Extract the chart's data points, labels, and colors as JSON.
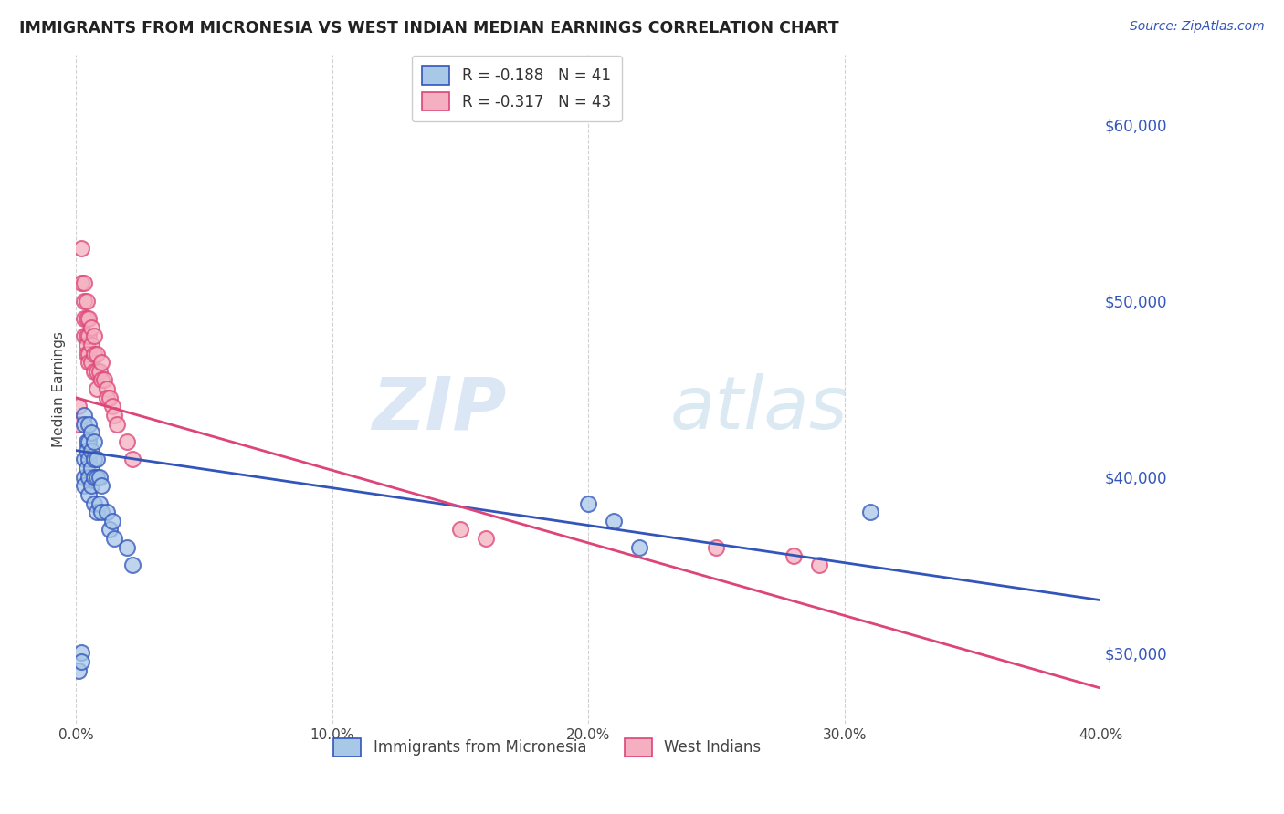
{
  "title": "IMMIGRANTS FROM MICRONESIA VS WEST INDIAN MEDIAN EARNINGS CORRELATION CHART",
  "source": "Source: ZipAtlas.com",
  "ylabel": "Median Earnings",
  "y_ticks": [
    30000,
    40000,
    50000,
    60000
  ],
  "y_tick_labels": [
    "$30,000",
    "$40,000",
    "$50,000",
    "$60,000"
  ],
  "xlim": [
    0.0,
    0.4
  ],
  "ylim": [
    26000,
    64000
  ],
  "legend_label1": "R = -0.188   N = 41",
  "legend_label2": "R = -0.317   N = 43",
  "legend_x_label": "Immigrants from Micronesia",
  "legend_x_label2": "West Indians",
  "color_blue": "#a8c8e8",
  "color_pink": "#f4b0c0",
  "line_color_blue": "#3355bb",
  "line_color_pink": "#dd4477",
  "background_color": "#ffffff",
  "watermark": "ZIPatlas",
  "micronesia_x": [
    0.001,
    0.002,
    0.002,
    0.003,
    0.003,
    0.003,
    0.003,
    0.003,
    0.004,
    0.004,
    0.004,
    0.005,
    0.005,
    0.005,
    0.005,
    0.005,
    0.006,
    0.006,
    0.006,
    0.006,
    0.007,
    0.007,
    0.007,
    0.007,
    0.008,
    0.008,
    0.008,
    0.009,
    0.009,
    0.01,
    0.01,
    0.012,
    0.013,
    0.014,
    0.015,
    0.02,
    0.022,
    0.2,
    0.21,
    0.22,
    0.31
  ],
  "micronesia_y": [
    29000,
    30000,
    29500,
    43500,
    43000,
    41000,
    40000,
    39500,
    42000,
    41500,
    40500,
    43000,
    42000,
    41000,
    40000,
    39000,
    42500,
    41500,
    40500,
    39500,
    42000,
    41000,
    40000,
    38500,
    41000,
    40000,
    38000,
    40000,
    38500,
    39500,
    38000,
    38000,
    37000,
    37500,
    36500,
    36000,
    35000,
    38500,
    37500,
    36000,
    38000
  ],
  "westindian_x": [
    0.001,
    0.001,
    0.002,
    0.002,
    0.003,
    0.003,
    0.003,
    0.003,
    0.004,
    0.004,
    0.004,
    0.004,
    0.004,
    0.005,
    0.005,
    0.005,
    0.005,
    0.006,
    0.006,
    0.006,
    0.007,
    0.007,
    0.007,
    0.008,
    0.008,
    0.008,
    0.009,
    0.01,
    0.01,
    0.011,
    0.012,
    0.012,
    0.013,
    0.014,
    0.015,
    0.016,
    0.02,
    0.022,
    0.15,
    0.16,
    0.25,
    0.28,
    0.29
  ],
  "westindian_y": [
    44000,
    43000,
    53000,
    51000,
    51000,
    50000,
    49000,
    48000,
    50000,
    49000,
    48000,
    47500,
    47000,
    49000,
    48000,
    47000,
    46500,
    48500,
    47500,
    46500,
    48000,
    47000,
    46000,
    47000,
    46000,
    45000,
    46000,
    46500,
    45500,
    45500,
    45000,
    44500,
    44500,
    44000,
    43500,
    43000,
    42000,
    41000,
    37000,
    36500,
    36000,
    35500,
    35000
  ],
  "blue_line_x0": 0.0,
  "blue_line_y0": 41500,
  "blue_line_x1": 0.4,
  "blue_line_y1": 33000,
  "pink_line_x0": 0.0,
  "pink_line_y0": 44500,
  "pink_line_x1": 0.4,
  "pink_line_y1": 28000
}
